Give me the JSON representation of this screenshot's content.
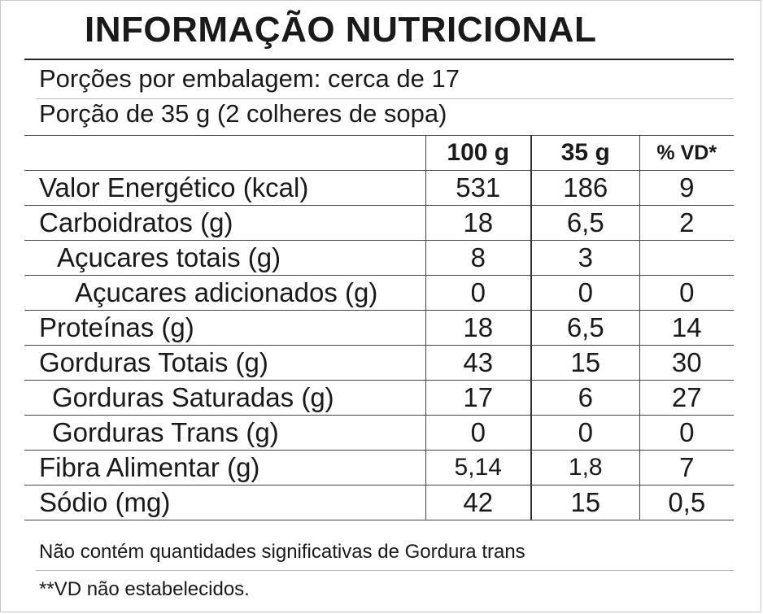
{
  "title": "INFORMAÇÃO NUTRICIONAL",
  "servings_per_package": "Porções por embalagem: cerca de 17",
  "serving_size": "Porção de 35 g (2 colheres de sopa)",
  "columns": [
    "",
    "100 g",
    "35 g",
    "% VD*"
  ],
  "rows": [
    {
      "label": "Valor Energético (kcal)",
      "per100": "531",
      "perServing": "186",
      "vd": "9"
    },
    {
      "label": "Carboidratos (g)",
      "per100": "18",
      "perServing": "6,5",
      "vd": "2"
    },
    {
      "label": "Açucares totais (g)",
      "per100": "8",
      "perServing": "3",
      "vd": ""
    },
    {
      "label": "Açucares adicionados (g)",
      "per100": "0",
      "perServing": "0",
      "vd": "0"
    },
    {
      "label": "Proteínas (g)",
      "per100": "18",
      "perServing": "6,5",
      "vd": "14"
    },
    {
      "label": "Gorduras Totais (g)",
      "per100": "43",
      "perServing": "15",
      "vd": "30"
    },
    {
      "label": "Gorduras Saturadas (g)",
      "per100": "17",
      "perServing": "6",
      "vd": "27"
    },
    {
      "label": "Gorduras Trans (g)",
      "per100": "0",
      "perServing": "0",
      "vd": "0"
    },
    {
      "label": "Fibra Alimentar (g)",
      "per100": "5,14",
      "perServing": "1,8",
      "vd": "7"
    },
    {
      "label": "Sódio (mg)",
      "per100": "42",
      "perServing": "15",
      "vd": "0,5"
    }
  ],
  "footnote_trans": "Não contém quantidades significativas de Gordura trans",
  "footnote_vd": "**VD não estabelecidos."
}
